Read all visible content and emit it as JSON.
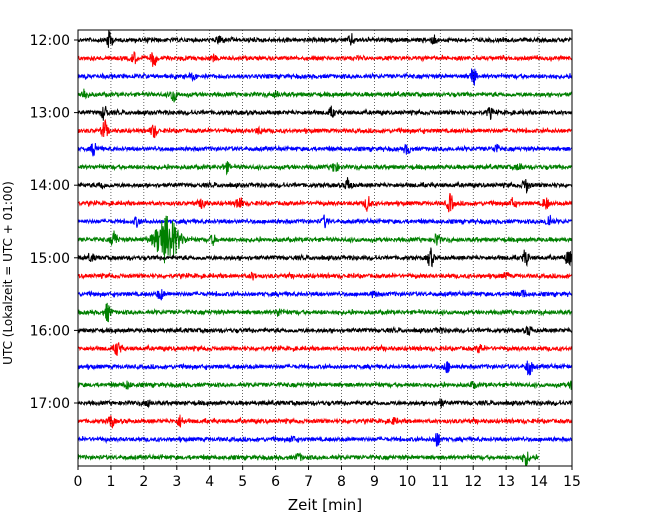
{
  "chart_data": {
    "type": "line",
    "xlabel": "Zeit  [min]",
    "ylabel": "UTC (Lokalzeit = UTC + 01:00)",
    "xlim": [
      0,
      15
    ],
    "x_ticks": [
      0,
      1,
      2,
      3,
      4,
      5,
      6,
      7,
      8,
      9,
      10,
      11,
      12,
      13,
      14,
      15
    ],
    "y_tick_labels": [
      "12:00",
      "13:00",
      "14:00",
      "15:00",
      "16:00",
      "17:00"
    ],
    "y_tick_row_index": [
      0,
      4,
      8,
      12,
      16,
      20
    ],
    "row_minutes": 15,
    "row_start_times": [
      "12:00",
      "12:15",
      "12:30",
      "12:45",
      "13:00",
      "13:15",
      "13:30",
      "13:45",
      "14:00",
      "14:15",
      "14:30",
      "14:45",
      "15:00",
      "15:15",
      "15:30",
      "15:45",
      "16:00",
      "16:15",
      "16:30",
      "16:45",
      "17:00",
      "17:15",
      "17:30",
      "17:45"
    ],
    "row_colors": [
      "#000000",
      "#ff0000",
      "#0000ff",
      "#008000"
    ],
    "grid": true,
    "last_row_end_min": 14.0,
    "events": [
      [
        [
          0.95,
          1.0
        ],
        [
          4.3,
          0.5
        ],
        [
          8.3,
          0.6
        ],
        [
          10.8,
          0.4
        ]
      ],
      [
        [
          1.7,
          0.6
        ],
        [
          2.3,
          0.9
        ],
        [
          4.1,
          0.3
        ]
      ],
      [
        [
          12.0,
          1.0
        ],
        [
          3.5,
          0.3
        ]
      ],
      [
        [
          0.2,
          0.6
        ],
        [
          2.9,
          0.8
        ],
        [
          6.0,
          0.3
        ]
      ],
      [
        [
          0.8,
          0.8
        ],
        [
          7.7,
          0.5
        ],
        [
          12.5,
          0.5
        ]
      ],
      [
        [
          0.8,
          1.0
        ],
        [
          2.3,
          0.7
        ],
        [
          5.5,
          0.3
        ]
      ],
      [
        [
          0.5,
          0.8
        ],
        [
          10.0,
          0.5
        ],
        [
          12.7,
          0.4
        ]
      ],
      [
        [
          4.5,
          0.6
        ],
        [
          7.8,
          0.6
        ],
        [
          13.4,
          0.4
        ]
      ],
      [
        [
          0.7,
          0.4
        ],
        [
          8.2,
          0.8
        ],
        [
          13.6,
          0.8
        ]
      ],
      [
        [
          3.8,
          0.6
        ],
        [
          4.9,
          0.7
        ],
        [
          8.8,
          0.8
        ],
        [
          11.3,
          1.0
        ],
        [
          13.2,
          0.5
        ],
        [
          14.2,
          0.6
        ]
      ],
      [
        [
          1.8,
          0.5
        ],
        [
          7.5,
          0.6
        ],
        [
          14.3,
          0.7
        ]
      ],
      [
        [
          1.1,
          1.0
        ],
        [
          2.7,
          2.6
        ],
        [
          4.1,
          0.5
        ],
        [
          10.9,
          0.7
        ]
      ],
      [
        [
          0.4,
          0.4
        ],
        [
          10.7,
          1.0
        ],
        [
          13.6,
          0.8
        ],
        [
          14.9,
          0.8
        ]
      ],
      [
        [
          5.3,
          0.3
        ],
        [
          13.0,
          0.3
        ]
      ],
      [
        [
          2.5,
          0.6
        ],
        [
          9.0,
          0.4
        ],
        [
          13.5,
          0.4
        ]
      ],
      [
        [
          0.9,
          1.0
        ],
        [
          6.1,
          0.4
        ]
      ],
      [
        [
          11.0,
          0.3
        ],
        [
          13.7,
          0.5
        ]
      ],
      [
        [
          1.2,
          0.8
        ],
        [
          12.2,
          0.4
        ]
      ],
      [
        [
          11.2,
          0.6
        ],
        [
          13.7,
          1.0
        ]
      ],
      [
        [
          1.5,
          0.4
        ],
        [
          12.0,
          0.3
        ],
        [
          15.0,
          0.4
        ]
      ],
      [
        [
          2.1,
          0.4
        ],
        [
          11.0,
          0.4
        ]
      ],
      [
        [
          1.0,
          0.7
        ],
        [
          3.1,
          0.6
        ],
        [
          9.6,
          0.3
        ]
      ],
      [
        [
          10.9,
          0.8
        ],
        [
          6.5,
          0.3
        ]
      ],
      [
        [
          6.7,
          0.4
        ],
        [
          13.6,
          0.8
        ]
      ]
    ]
  }
}
